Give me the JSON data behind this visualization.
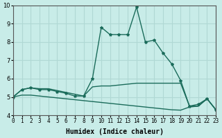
{
  "xlabel": "Humidex (Indice chaleur)",
  "ylabel": "",
  "background_color": "#c8ece8",
  "grid_color": "#b0d8d4",
  "line_color": "#1a6b5a",
  "xlim": [
    0,
    23
  ],
  "ylim": [
    4,
    10
  ],
  "yticks": [
    4,
    5,
    6,
    7,
    8,
    9,
    10
  ],
  "xtick_labels": [
    "0",
    "1",
    "2",
    "3",
    "4",
    "5",
    "6",
    "7",
    "8",
    "9",
    "10",
    "11",
    "12",
    "13",
    "14",
    "15",
    "16",
    "17",
    "18",
    "19",
    "20",
    "21",
    "22",
    "23"
  ],
  "line1_x": [
    0,
    1,
    2,
    3,
    4,
    5,
    6,
    7,
    8,
    9,
    10,
    11,
    12,
    13,
    14,
    15,
    16,
    17,
    18,
    19,
    20,
    21,
    22,
    23
  ],
  "line1_y": [
    5.0,
    5.4,
    5.5,
    5.4,
    5.4,
    5.3,
    5.2,
    5.05,
    5.05,
    6.0,
    8.8,
    8.4,
    8.4,
    8.4,
    9.9,
    8.0,
    8.1,
    7.4,
    6.8,
    5.9,
    4.5,
    4.6,
    4.9,
    4.3
  ],
  "line2_x": [
    0,
    1,
    2,
    3,
    4,
    5,
    6,
    7,
    8,
    9,
    10,
    11,
    12,
    13,
    14,
    15,
    16,
    17,
    18,
    19,
    20,
    21,
    22,
    23
  ],
  "line2_y": [
    5.0,
    5.4,
    5.5,
    5.45,
    5.45,
    5.35,
    5.25,
    5.15,
    5.05,
    5.55,
    5.6,
    5.6,
    5.65,
    5.7,
    5.75,
    5.75,
    5.75,
    5.75,
    5.75,
    5.75,
    4.5,
    4.5,
    4.9,
    4.3
  ],
  "line3_x": [
    0,
    1,
    2,
    3,
    4,
    5,
    6,
    7,
    8,
    9,
    10,
    11,
    12,
    13,
    14,
    15,
    16,
    17,
    18,
    19,
    20,
    21,
    22,
    23
  ],
  "line3_y": [
    5.0,
    5.1,
    5.1,
    5.05,
    5.0,
    4.95,
    4.9,
    4.85,
    4.8,
    4.75,
    4.7,
    4.65,
    4.6,
    4.55,
    4.5,
    4.45,
    4.4,
    4.35,
    4.3,
    4.28,
    4.45,
    4.5,
    4.9,
    4.3
  ]
}
